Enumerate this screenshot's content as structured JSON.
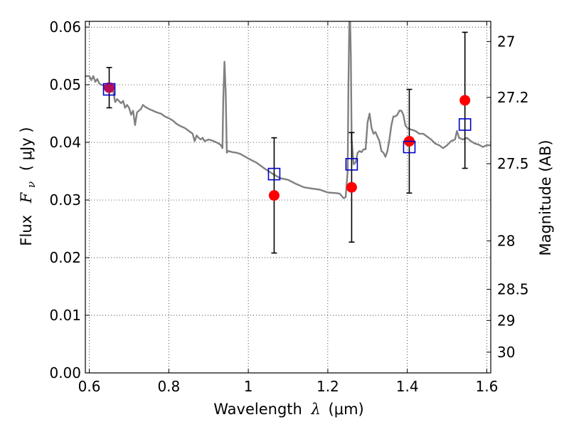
{
  "chart_data": {
    "type": "scatter",
    "xlabel_prefix": "Wavelength",
    "xlabel_symbol": "λ",
    "xlabel_unit": "(μm)",
    "ylabel_prefix": "Flux",
    "ylabel_symbol": "F",
    "ylabel_subscript": "ν",
    "ylabel_unit": "( μJy )",
    "y2label": "Magnitude (AB)",
    "xlim": [
      0.59,
      1.61
    ],
    "ylim": [
      0.0,
      0.061
    ],
    "grid": true,
    "x_ticks": [
      {
        "value": 0.6,
        "label": "0.6"
      },
      {
        "value": 0.8,
        "label": "0.8"
      },
      {
        "value": 1.0,
        "label": "1"
      },
      {
        "value": 1.2,
        "label": "1.2"
      },
      {
        "value": 1.4,
        "label": "1.4"
      },
      {
        "value": 1.6,
        "label": "1.6"
      }
    ],
    "y_ticks": [
      {
        "value": 0.0,
        "label": "0.00"
      },
      {
        "value": 0.01,
        "label": "0.01"
      },
      {
        "value": 0.02,
        "label": "0.02"
      },
      {
        "value": 0.03,
        "label": "0.03"
      },
      {
        "value": 0.04,
        "label": "0.04"
      },
      {
        "value": 0.05,
        "label": "0.05"
      },
      {
        "value": 0.06,
        "label": "0.06"
      }
    ],
    "mag_ticks": [
      {
        "value": 0.0575,
        "label": "27"
      },
      {
        "value": 0.0478,
        "label": "27.2"
      },
      {
        "value": 0.0363,
        "label": "27.5"
      },
      {
        "value": 0.0229,
        "label": "28"
      },
      {
        "value": 0.0145,
        "label": "28.5"
      },
      {
        "value": 0.0091,
        "label": "29"
      },
      {
        "value": 0.0036,
        "label": "30"
      }
    ],
    "series": [
      {
        "kind": "line",
        "color": "#808080",
        "points": [
          [
            0.59,
            0.0515
          ],
          [
            0.6,
            0.0515
          ],
          [
            0.605,
            0.0508
          ],
          [
            0.61,
            0.0515
          ],
          [
            0.615,
            0.0505
          ],
          [
            0.62,
            0.051
          ],
          [
            0.625,
            0.0502
          ],
          [
            0.63,
            0.05
          ],
          [
            0.64,
            0.0498
          ],
          [
            0.65,
            0.0497
          ],
          [
            0.66,
            0.049
          ],
          [
            0.665,
            0.047
          ],
          [
            0.67,
            0.0475
          ],
          [
            0.68,
            0.0468
          ],
          [
            0.685,
            0.0472
          ],
          [
            0.69,
            0.046
          ],
          [
            0.695,
            0.0465
          ],
          [
            0.7,
            0.046
          ],
          [
            0.705,
            0.0448
          ],
          [
            0.71,
            0.0455
          ],
          [
            0.715,
            0.043
          ],
          [
            0.72,
            0.0452
          ],
          [
            0.73,
            0.0458
          ],
          [
            0.735,
            0.0465
          ],
          [
            0.74,
            0.0462
          ],
          [
            0.75,
            0.0458
          ],
          [
            0.76,
            0.0455
          ],
          [
            0.77,
            0.0452
          ],
          [
            0.78,
            0.045
          ],
          [
            0.79,
            0.0445
          ],
          [
            0.8,
            0.0442
          ],
          [
            0.81,
            0.0438
          ],
          [
            0.82,
            0.0432
          ],
          [
            0.83,
            0.0428
          ],
          [
            0.84,
            0.0425
          ],
          [
            0.85,
            0.042
          ],
          [
            0.86,
            0.0415
          ],
          [
            0.865,
            0.0402
          ],
          [
            0.87,
            0.0412
          ],
          [
            0.875,
            0.0408
          ],
          [
            0.88,
            0.0405
          ],
          [
            0.885,
            0.0408
          ],
          [
            0.89,
            0.0402
          ],
          [
            0.9,
            0.0405
          ],
          [
            0.91,
            0.0403
          ],
          [
            0.92,
            0.04
          ],
          [
            0.93,
            0.0396
          ],
          [
            0.935,
            0.039
          ],
          [
            0.937,
            0.0475
          ],
          [
            0.94,
            0.054
          ],
          [
            0.943,
            0.0488
          ],
          [
            0.946,
            0.0382
          ],
          [
            0.95,
            0.0385
          ],
          [
            0.96,
            0.0383
          ],
          [
            0.97,
            0.0382
          ],
          [
            0.98,
            0.038
          ],
          [
            0.99,
            0.0376
          ],
          [
            1.0,
            0.0372
          ],
          [
            1.02,
            0.0365
          ],
          [
            1.04,
            0.0355
          ],
          [
            1.06,
            0.0346
          ],
          [
            1.08,
            0.0338
          ],
          [
            1.1,
            0.0335
          ],
          [
            1.12,
            0.0328
          ],
          [
            1.14,
            0.0322
          ],
          [
            1.16,
            0.032
          ],
          [
            1.18,
            0.0318
          ],
          [
            1.2,
            0.0313
          ],
          [
            1.22,
            0.0312
          ],
          [
            1.23,
            0.0311
          ],
          [
            1.24,
            0.0303
          ],
          [
            1.245,
            0.0305
          ],
          [
            1.25,
            0.035
          ],
          [
            1.252,
            0.05
          ],
          [
            1.255,
            0.065
          ],
          [
            1.258,
            0.055
          ],
          [
            1.26,
            0.0405
          ],
          [
            1.265,
            0.0362
          ],
          [
            1.27,
            0.0365
          ],
          [
            1.275,
            0.0382
          ],
          [
            1.28,
            0.0385
          ],
          [
            1.285,
            0.0383
          ],
          [
            1.29,
            0.0388
          ],
          [
            1.295,
            0.0388
          ],
          [
            1.3,
            0.0435
          ],
          [
            1.305,
            0.045
          ],
          [
            1.31,
            0.0425
          ],
          [
            1.315,
            0.0415
          ],
          [
            1.32,
            0.0418
          ],
          [
            1.33,
            0.0402
          ],
          [
            1.335,
            0.0385
          ],
          [
            1.34,
            0.0382
          ],
          [
            1.345,
            0.0375
          ],
          [
            1.35,
            0.0385
          ],
          [
            1.355,
            0.0405
          ],
          [
            1.36,
            0.043
          ],
          [
            1.365,
            0.0445
          ],
          [
            1.37,
            0.0445
          ],
          [
            1.375,
            0.0448
          ],
          [
            1.38,
            0.0455
          ],
          [
            1.385,
            0.0455
          ],
          [
            1.39,
            0.0448
          ],
          [
            1.395,
            0.043
          ],
          [
            1.4,
            0.0425
          ],
          [
            1.41,
            0.0422
          ],
          [
            1.42,
            0.042
          ],
          [
            1.43,
            0.0415
          ],
          [
            1.44,
            0.0415
          ],
          [
            1.45,
            0.041
          ],
          [
            1.46,
            0.0405
          ],
          [
            1.47,
            0.0398
          ],
          [
            1.48,
            0.0395
          ],
          [
            1.49,
            0.039
          ],
          [
            1.5,
            0.0395
          ],
          [
            1.51,
            0.0402
          ],
          [
            1.52,
            0.0405
          ],
          [
            1.525,
            0.042
          ],
          [
            1.53,
            0.0408
          ],
          [
            1.54,
            0.0405
          ],
          [
            1.55,
            0.0408
          ],
          [
            1.56,
            0.0402
          ],
          [
            1.57,
            0.0398
          ],
          [
            1.58,
            0.0396
          ],
          [
            1.59,
            0.0392
          ],
          [
            1.6,
            0.0395
          ],
          [
            1.61,
            0.0395
          ]
        ]
      },
      {
        "kind": "points",
        "color": "#ff0000",
        "marker": "circle",
        "x": [
          0.65,
          1.065,
          1.26,
          1.405,
          1.545
        ],
        "y": [
          0.0495,
          0.0308,
          0.0322,
          0.0402,
          0.0473
        ],
        "yerr": [
          0.0035,
          0.01,
          0.0095,
          0.009,
          0.0118
        ]
      },
      {
        "kind": "points",
        "color": "#0000cc",
        "marker": "square",
        "x": [
          0.65,
          1.065,
          1.26,
          1.405,
          1.545
        ],
        "y": [
          0.0492,
          0.0345,
          0.0362,
          0.0392,
          0.0431
        ]
      }
    ]
  }
}
